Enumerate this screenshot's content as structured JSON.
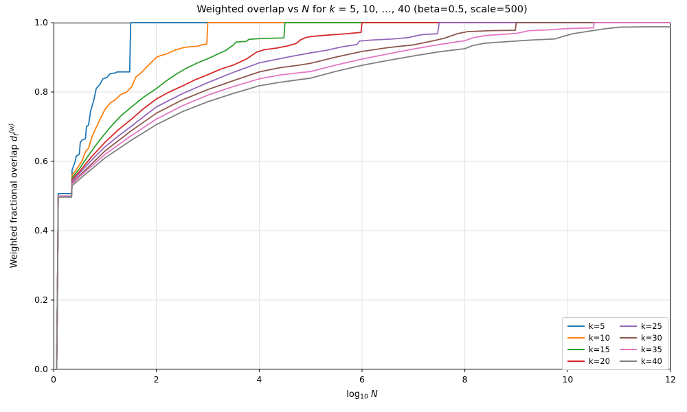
{
  "chart_data": {
    "type": "line",
    "title_segments": [
      {
        "t": "Weighted overlap vs "
      },
      {
        "t": "N",
        "style": "i"
      },
      {
        "t": " for "
      },
      {
        "t": "k",
        "style": "i"
      },
      {
        "t": " = 5, 10, …, 40 (beta=0.5, scale=500)"
      }
    ],
    "xlabel_segments": [
      {
        "t": "log"
      },
      {
        "t": "10",
        "style": "sub"
      },
      {
        "t": " N",
        "style": "i"
      }
    ],
    "ylabel_segments": [
      {
        "t": "Weighted fractional overlap "
      },
      {
        "t": "d",
        "style": "i"
      },
      {
        "t": "f",
        "style": "isub"
      },
      {
        "t": "(w)",
        "style": "isup"
      }
    ],
    "xlim": [
      0,
      12
    ],
    "ylim": [
      0.0,
      1.0
    ],
    "x_ticks": [
      0,
      2,
      4,
      6,
      8,
      10,
      12
    ],
    "y_ticks": [
      0.0,
      0.2,
      0.4,
      0.6,
      0.8,
      1.0
    ],
    "x_tick_labels": [
      "0",
      "2",
      "4",
      "6",
      "8",
      "10",
      "12"
    ],
    "y_tick_labels": [
      "0.0",
      "0.2",
      "0.4",
      "0.6",
      "0.8",
      "1.0"
    ],
    "grid": true,
    "grid_color": "#e0e0e0",
    "legend_position": "lower right",
    "legend_columns": 2,
    "series": [
      {
        "name": "k=5",
        "color": "#1f77b4",
        "points": [
          [
            0,
            0
          ],
          [
            0.06,
            0
          ],
          [
            0.08,
            0.3
          ],
          [
            0.09,
            0.507
          ],
          [
            0.35,
            0.507
          ],
          [
            0.36,
            0.575
          ],
          [
            0.42,
            0.6
          ],
          [
            0.44,
            0.615
          ],
          [
            0.5,
            0.62
          ],
          [
            0.52,
            0.655
          ],
          [
            0.56,
            0.662
          ],
          [
            0.62,
            0.665
          ],
          [
            0.64,
            0.7
          ],
          [
            0.68,
            0.705
          ],
          [
            0.72,
            0.745
          ],
          [
            0.78,
            0.775
          ],
          [
            0.83,
            0.81
          ],
          [
            0.9,
            0.822
          ],
          [
            0.96,
            0.838
          ],
          [
            1.04,
            0.842
          ],
          [
            1.1,
            0.853
          ],
          [
            1.2,
            0.855
          ],
          [
            1.24,
            0.858
          ],
          [
            1.48,
            0.858
          ],
          [
            1.5,
            1.0
          ],
          [
            12,
            1.0
          ]
        ]
      },
      {
        "name": "k=10",
        "color": "#ff7f0e",
        "points": [
          [
            0,
            0
          ],
          [
            0.06,
            0
          ],
          [
            0.08,
            0.3
          ],
          [
            0.09,
            0.5
          ],
          [
            0.35,
            0.5
          ],
          [
            0.36,
            0.56
          ],
          [
            0.45,
            0.578
          ],
          [
            0.55,
            0.6
          ],
          [
            0.62,
            0.628
          ],
          [
            0.68,
            0.638
          ],
          [
            0.75,
            0.672
          ],
          [
            0.82,
            0.695
          ],
          [
            0.9,
            0.72
          ],
          [
            1.0,
            0.75
          ],
          [
            1.1,
            0.768
          ],
          [
            1.2,
            0.778
          ],
          [
            1.3,
            0.792
          ],
          [
            1.42,
            0.8
          ],
          [
            1.52,
            0.815
          ],
          [
            1.6,
            0.843
          ],
          [
            1.7,
            0.855
          ],
          [
            1.85,
            0.878
          ],
          [
            2.0,
            0.9
          ],
          [
            2.08,
            0.905
          ],
          [
            2.2,
            0.91
          ],
          [
            2.35,
            0.92
          ],
          [
            2.5,
            0.927
          ],
          [
            2.6,
            0.93
          ],
          [
            2.8,
            0.932
          ],
          [
            2.9,
            0.937
          ],
          [
            2.98,
            0.938
          ],
          [
            3.0,
            1.0
          ],
          [
            12,
            1.0
          ]
        ]
      },
      {
        "name": "k=15",
        "color": "#2ca02c",
        "points": [
          [
            0,
            0
          ],
          [
            0.06,
            0
          ],
          [
            0.08,
            0.3
          ],
          [
            0.09,
            0.5
          ],
          [
            0.35,
            0.5
          ],
          [
            0.36,
            0.553
          ],
          [
            0.5,
            0.578
          ],
          [
            0.7,
            0.622
          ],
          [
            0.9,
            0.662
          ],
          [
            1.1,
            0.698
          ],
          [
            1.3,
            0.73
          ],
          [
            1.5,
            0.755
          ],
          [
            1.75,
            0.785
          ],
          [
            2.0,
            0.81
          ],
          [
            2.2,
            0.833
          ],
          [
            2.4,
            0.853
          ],
          [
            2.6,
            0.87
          ],
          [
            2.8,
            0.884
          ],
          [
            3.0,
            0.896
          ],
          [
            3.2,
            0.91
          ],
          [
            3.35,
            0.92
          ],
          [
            3.5,
            0.936
          ],
          [
            3.55,
            0.944
          ],
          [
            3.75,
            0.946
          ],
          [
            3.8,
            0.952
          ],
          [
            4.0,
            0.954
          ],
          [
            4.48,
            0.956
          ],
          [
            4.5,
            1.0
          ],
          [
            12,
            1.0
          ]
        ]
      },
      {
        "name": "k=20",
        "color": "#d62728",
        "points": [
          [
            0,
            0
          ],
          [
            0.06,
            0
          ],
          [
            0.08,
            0.3
          ],
          [
            0.09,
            0.5
          ],
          [
            0.35,
            0.5
          ],
          [
            0.36,
            0.548
          ],
          [
            0.5,
            0.57
          ],
          [
            0.75,
            0.615
          ],
          [
            1.0,
            0.655
          ],
          [
            1.25,
            0.69
          ],
          [
            1.5,
            0.72
          ],
          [
            1.75,
            0.752
          ],
          [
            2.0,
            0.78
          ],
          [
            2.25,
            0.8
          ],
          [
            2.5,
            0.817
          ],
          [
            2.75,
            0.835
          ],
          [
            3.0,
            0.85
          ],
          [
            3.25,
            0.866
          ],
          [
            3.5,
            0.878
          ],
          [
            3.75,
            0.895
          ],
          [
            3.95,
            0.915
          ],
          [
            4.1,
            0.922
          ],
          [
            4.35,
            0.927
          ],
          [
            4.55,
            0.933
          ],
          [
            4.72,
            0.94
          ],
          [
            4.8,
            0.95
          ],
          [
            4.9,
            0.957
          ],
          [
            5.0,
            0.96
          ],
          [
            5.4,
            0.965
          ],
          [
            5.7,
            0.968
          ],
          [
            5.98,
            0.972
          ],
          [
            6.0,
            1.0
          ],
          [
            12,
            1.0
          ]
        ]
      },
      {
        "name": "k=25",
        "color": "#9467bd",
        "points": [
          [
            0,
            0
          ],
          [
            0.06,
            0
          ],
          [
            0.08,
            0.3
          ],
          [
            0.09,
            0.5
          ],
          [
            0.35,
            0.5
          ],
          [
            0.36,
            0.543
          ],
          [
            0.5,
            0.565
          ],
          [
            0.75,
            0.605
          ],
          [
            1.0,
            0.642
          ],
          [
            1.25,
            0.672
          ],
          [
            1.5,
            0.7
          ],
          [
            2.0,
            0.757
          ],
          [
            2.5,
            0.795
          ],
          [
            3.0,
            0.827
          ],
          [
            3.5,
            0.857
          ],
          [
            4.0,
            0.884
          ],
          [
            4.3,
            0.893
          ],
          [
            4.6,
            0.902
          ],
          [
            5.0,
            0.913
          ],
          [
            5.3,
            0.92
          ],
          [
            5.6,
            0.93
          ],
          [
            5.9,
            0.937
          ],
          [
            5.95,
            0.947
          ],
          [
            6.2,
            0.95
          ],
          [
            6.6,
            0.953
          ],
          [
            6.9,
            0.957
          ],
          [
            7.05,
            0.962
          ],
          [
            7.2,
            0.966
          ],
          [
            7.47,
            0.968
          ],
          [
            7.5,
            1.0
          ],
          [
            12,
            1.0
          ]
        ]
      },
      {
        "name": "k=30",
        "color": "#8c564b",
        "points": [
          [
            0,
            0
          ],
          [
            0.06,
            0
          ],
          [
            0.08,
            0.3
          ],
          [
            0.09,
            0.5
          ],
          [
            0.35,
            0.5
          ],
          [
            0.36,
            0.538
          ],
          [
            0.5,
            0.558
          ],
          [
            1.0,
            0.63
          ],
          [
            1.5,
            0.687
          ],
          [
            2.0,
            0.739
          ],
          [
            2.5,
            0.777
          ],
          [
            3.0,
            0.807
          ],
          [
            3.5,
            0.833
          ],
          [
            4.0,
            0.858
          ],
          [
            4.4,
            0.87
          ],
          [
            4.8,
            0.878
          ],
          [
            5.0,
            0.883
          ],
          [
            5.5,
            0.901
          ],
          [
            6.0,
            0.917
          ],
          [
            6.5,
            0.928
          ],
          [
            7.0,
            0.936
          ],
          [
            7.3,
            0.945
          ],
          [
            7.6,
            0.955
          ],
          [
            7.85,
            0.968
          ],
          [
            8.05,
            0.974
          ],
          [
            8.5,
            0.977
          ],
          [
            8.98,
            0.978
          ],
          [
            9.0,
            1.0
          ],
          [
            12,
            1.0
          ]
        ]
      },
      {
        "name": "k=35",
        "color": "#e377c2",
        "points": [
          [
            0,
            0
          ],
          [
            0.06,
            0
          ],
          [
            0.08,
            0.3
          ],
          [
            0.09,
            0.5
          ],
          [
            0.35,
            0.5
          ],
          [
            0.36,
            0.535
          ],
          [
            0.5,
            0.555
          ],
          [
            1.0,
            0.62
          ],
          [
            1.5,
            0.673
          ],
          [
            2.0,
            0.722
          ],
          [
            2.5,
            0.76
          ],
          [
            3.0,
            0.791
          ],
          [
            3.5,
            0.816
          ],
          [
            4.0,
            0.838
          ],
          [
            4.4,
            0.849
          ],
          [
            4.8,
            0.856
          ],
          [
            5.0,
            0.859
          ],
          [
            5.5,
            0.878
          ],
          [
            6.0,
            0.895
          ],
          [
            6.5,
            0.91
          ],
          [
            7.0,
            0.924
          ],
          [
            7.5,
            0.937
          ],
          [
            8.0,
            0.948
          ],
          [
            8.15,
            0.956
          ],
          [
            8.4,
            0.963
          ],
          [
            8.8,
            0.967
          ],
          [
            9.0,
            0.969
          ],
          [
            9.25,
            0.977
          ],
          [
            9.6,
            0.979
          ],
          [
            10.0,
            0.983
          ],
          [
            10.5,
            0.985
          ],
          [
            10.52,
            1.0
          ],
          [
            12,
            1.0
          ]
        ]
      },
      {
        "name": "k=40",
        "color": "#7f7f7f",
        "points": [
          [
            0,
            0
          ],
          [
            0.06,
            0
          ],
          [
            0.08,
            0.3
          ],
          [
            0.09,
            0.497
          ],
          [
            0.35,
            0.497
          ],
          [
            0.36,
            0.53
          ],
          [
            0.5,
            0.548
          ],
          [
            1.0,
            0.61
          ],
          [
            1.5,
            0.66
          ],
          [
            2.0,
            0.706
          ],
          [
            2.5,
            0.743
          ],
          [
            3.0,
            0.772
          ],
          [
            3.5,
            0.796
          ],
          [
            4.0,
            0.818
          ],
          [
            4.4,
            0.828
          ],
          [
            4.8,
            0.836
          ],
          [
            5.0,
            0.84
          ],
          [
            5.5,
            0.86
          ],
          [
            6.0,
            0.877
          ],
          [
            6.5,
            0.891
          ],
          [
            7.0,
            0.904
          ],
          [
            7.5,
            0.916
          ],
          [
            8.0,
            0.925
          ],
          [
            8.15,
            0.934
          ],
          [
            8.4,
            0.941
          ],
          [
            8.9,
            0.946
          ],
          [
            9.3,
            0.95
          ],
          [
            9.75,
            0.953
          ],
          [
            9.9,
            0.96
          ],
          [
            10.1,
            0.968
          ],
          [
            10.4,
            0.975
          ],
          [
            10.7,
            0.982
          ],
          [
            11.0,
            0.987
          ],
          [
            11.5,
            0.988
          ],
          [
            12,
            0.988
          ]
        ]
      }
    ]
  }
}
